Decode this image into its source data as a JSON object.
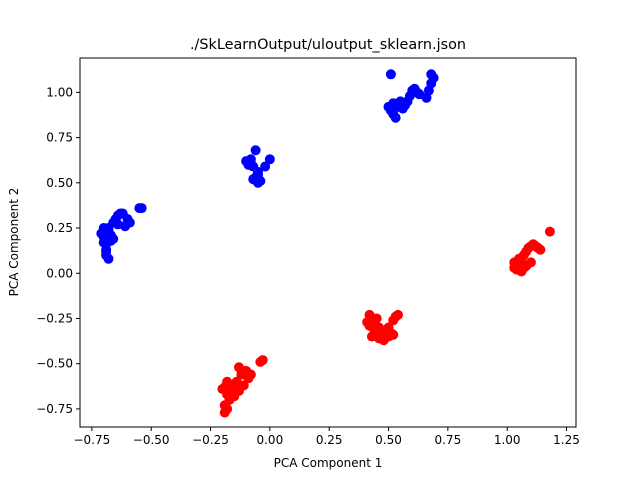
{
  "chart_data": {
    "type": "scatter",
    "title": "./SkLearnOutput/uloutput_sklearn.json",
    "xlabel": "PCA Component 1",
    "ylabel": "PCA Component 2",
    "xlim": [
      -0.8,
      1.29
    ],
    "ylim": [
      -0.85,
      1.19
    ],
    "xticks": [
      -0.75,
      -0.5,
      -0.25,
      0.0,
      0.25,
      0.5,
      0.75,
      1.0,
      1.25
    ],
    "xtick_labels": [
      "−0.75",
      "−0.50",
      "−0.25",
      "0.00",
      "0.25",
      "0.50",
      "0.75",
      "1.00",
      "1.25"
    ],
    "yticks": [
      -0.75,
      -0.5,
      -0.25,
      0.0,
      0.25,
      0.5,
      0.75,
      1.0
    ],
    "ytick_labels": [
      "−0.75",
      "−0.50",
      "−0.25",
      "0.00",
      "0.25",
      "0.50",
      "0.75",
      "1.00"
    ],
    "grid": false,
    "legend": "none",
    "colors": {
      "blue_series": "#0000ff",
      "red_series": "#ff0000"
    },
    "series": [
      {
        "color": "#0000ff",
        "x": [
          -0.7,
          -0.7,
          -0.7,
          -0.69,
          -0.69,
          -0.69,
          -0.68,
          -0.68,
          -0.67,
          -0.67,
          -0.66,
          -0.68,
          -0.7,
          -0.68,
          -0.69,
          -0.66,
          -0.65,
          -0.64,
          -0.63,
          -0.62,
          -0.6,
          -0.59,
          -0.61,
          -0.64,
          -0.55,
          -0.54,
          -0.69,
          -0.71,
          -0.06,
          -0.05,
          -0.07,
          -0.05,
          -0.06,
          -0.04,
          -0.05,
          -0.07,
          -0.08,
          -0.09,
          -0.1,
          -0.08,
          -0.09,
          -0.05,
          -0.02,
          -0.05,
          0.0,
          0.5,
          0.51,
          0.52,
          0.53,
          0.54,
          0.55,
          0.52,
          0.54,
          0.56,
          0.57,
          0.58,
          0.59,
          0.6,
          0.61,
          0.62,
          0.63,
          0.66,
          0.67,
          0.68,
          0.69,
          0.68,
          0.51
        ],
        "y": [
          0.23,
          0.2,
          0.17,
          0.16,
          0.13,
          0.1,
          0.08,
          0.22,
          0.21,
          0.18,
          0.19,
          0.24,
          0.25,
          0.25,
          0.23,
          0.28,
          0.3,
          0.32,
          0.33,
          0.33,
          0.3,
          0.28,
          0.26,
          0.27,
          0.36,
          0.36,
          0.12,
          0.22,
          0.68,
          0.55,
          0.52,
          0.5,
          0.53,
          0.51,
          0.52,
          0.59,
          0.61,
          0.6,
          0.62,
          0.63,
          0.6,
          0.56,
          0.59,
          0.54,
          0.63,
          0.92,
          0.9,
          0.88,
          0.86,
          0.93,
          0.95,
          0.94,
          0.92,
          0.91,
          0.93,
          0.95,
          0.98,
          1.01,
          1.02,
          1.0,
          0.99,
          0.97,
          1.01,
          1.05,
          1.08,
          1.1,
          1.1
        ],
        "x_extra": []
      },
      {
        "color": "#ff0000",
        "x": [
          -0.19,
          -0.18,
          -0.17,
          -0.19,
          -0.18,
          -0.19,
          -0.17,
          -0.16,
          -0.14,
          -0.13,
          -0.11,
          -0.12,
          -0.1,
          -0.08,
          -0.09,
          -0.13,
          -0.15,
          -0.18,
          -0.2,
          -0.03,
          -0.04,
          0.41,
          0.42,
          0.44,
          0.45,
          0.43,
          0.46,
          0.47,
          0.49,
          0.5,
          0.52,
          0.51,
          0.53,
          0.54,
          0.45,
          0.42,
          0.44,
          0.46,
          0.48,
          0.5,
          0.52,
          1.03,
          1.04,
          1.05,
          1.06,
          1.07,
          1.08,
          1.09,
          1.1,
          1.11,
          1.12,
          1.13,
          1.14,
          1.04,
          1.06,
          1.08,
          1.03,
          1.05,
          1.07,
          1.1,
          1.18
        ],
        "y": [
          -0.63,
          -0.67,
          -0.7,
          -0.73,
          -0.75,
          -0.77,
          -0.66,
          -0.62,
          -0.6,
          -0.65,
          -0.62,
          -0.56,
          -0.54,
          -0.56,
          -0.58,
          -0.52,
          -0.68,
          -0.6,
          -0.64,
          -0.48,
          -0.49,
          -0.27,
          -0.29,
          -0.31,
          -0.33,
          -0.35,
          -0.36,
          -0.34,
          -0.32,
          -0.35,
          -0.34,
          -0.33,
          -0.24,
          -0.23,
          -0.25,
          -0.23,
          -0.28,
          -0.3,
          -0.37,
          -0.3,
          -0.26,
          0.03,
          0.05,
          0.07,
          0.08,
          0.1,
          0.12,
          0.14,
          0.15,
          0.16,
          0.15,
          0.14,
          0.13,
          0.02,
          0.01,
          0.04,
          0.06,
          0.08,
          0.03,
          0.06,
          0.23
        ]
      }
    ]
  }
}
